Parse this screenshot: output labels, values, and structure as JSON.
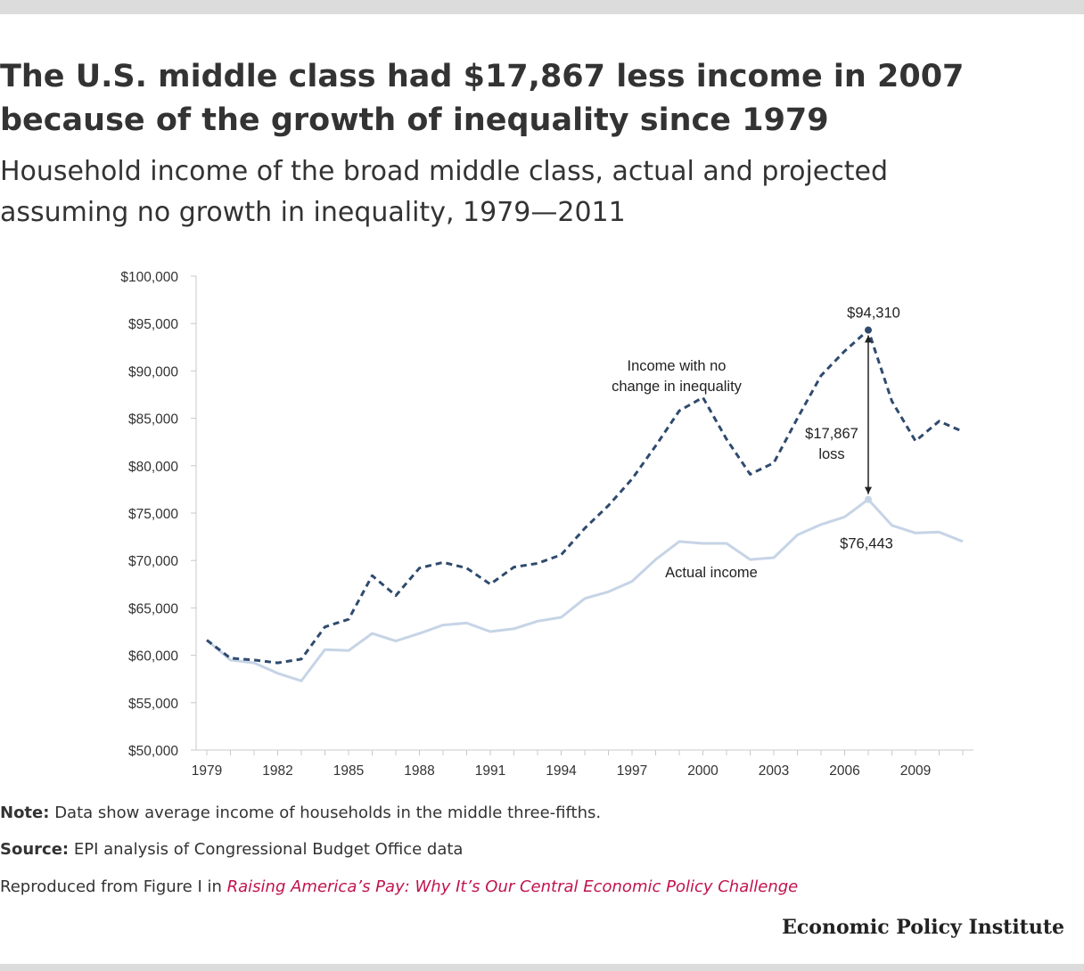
{
  "title_lines": [
    "The U.S. middle class had $17,867 less income in 2007",
    "because of the growth of inequality since 1979"
  ],
  "subtitle_lines": [
    "Household income of the broad middle class, actual and projected",
    "assuming no growth in inequality, 1979—2011"
  ],
  "chart_data": {
    "type": "line",
    "title": "The U.S. middle class had $17,867 less income in 2007 because of the growth of inequality since 1979",
    "xlabel": "",
    "ylabel": "",
    "xlim": [
      1979,
      2011
    ],
    "ylim": [
      50000,
      100000
    ],
    "y_ticks": [
      50000,
      55000,
      60000,
      65000,
      70000,
      75000,
      80000,
      85000,
      90000,
      95000,
      100000
    ],
    "y_tick_labels": [
      "$50,000",
      "$55,000",
      "$60,000",
      "$65,000",
      "$70,000",
      "$75,000",
      "$80,000",
      "$85,000",
      "$90,000",
      "$95,000",
      "$100,000"
    ],
    "x_ticks": [
      1979,
      1982,
      1985,
      1988,
      1991,
      1994,
      1997,
      2000,
      2003,
      2006,
      2009
    ],
    "x_tick_labels": [
      "1979",
      "1982",
      "1985",
      "1988",
      "1991",
      "1994",
      "1997",
      "2000",
      "2003",
      "2006",
      "2009"
    ],
    "x": [
      1979,
      1980,
      1981,
      1982,
      1983,
      1984,
      1985,
      1986,
      1987,
      1988,
      1989,
      1990,
      1991,
      1992,
      1993,
      1994,
      1995,
      1996,
      1997,
      1998,
      1999,
      2000,
      2001,
      2002,
      2003,
      2004,
      2005,
      2006,
      2007,
      2008,
      2009,
      2010,
      2011
    ],
    "series": [
      {
        "name": "Income with no change in inequality",
        "style": "dashed",
        "color": "#2f4a6e",
        "values": [
          61600,
          59700,
          59500,
          59200,
          59600,
          63000,
          63800,
          68400,
          66300,
          69200,
          69800,
          69200,
          67500,
          69300,
          69700,
          70600,
          73400,
          75800,
          78600,
          82100,
          85800,
          87200,
          82800,
          79100,
          80300,
          85000,
          89500,
          92100,
          94310,
          86800,
          82600,
          84700,
          83600
        ]
      },
      {
        "name": "Actual income",
        "style": "solid",
        "color": "#c6d4e6",
        "values": [
          61600,
          59500,
          59200,
          58100,
          57300,
          60600,
          60500,
          62300,
          61500,
          62300,
          63200,
          63400,
          62500,
          62800,
          63600,
          64000,
          66000,
          66700,
          67800,
          70100,
          72000,
          71800,
          71800,
          70100,
          70300,
          72700,
          73800,
          74600,
          76443,
          73700,
          72900,
          73000,
          72000
        ]
      }
    ],
    "annotations": {
      "projected_peak": "$94,310",
      "actual_peak": "$76,443",
      "gap_lines": [
        "$17,867",
        "loss"
      ],
      "projected_label_lines": [
        "Income with no",
        "change in inequality"
      ],
      "actual_label": "Actual income"
    }
  },
  "notes": {
    "note_label": "Note:",
    "note_text": "Data show average income of households in the middle three-fifths.",
    "source_label": "Source:",
    "source_text": "EPI analysis of Congressional Budget Office data",
    "reproduced_prefix": "Reproduced from Figure I in",
    "reproduced_link": "Raising America’s Pay: Why It’s Our Central Economic Policy Challenge"
  },
  "brand": "Economic Policy Institute",
  "colors": {
    "projected": "#2f4a6e",
    "actual": "#c6d4e6",
    "link": "#c0144e",
    "axis": "#c8c8c8"
  }
}
